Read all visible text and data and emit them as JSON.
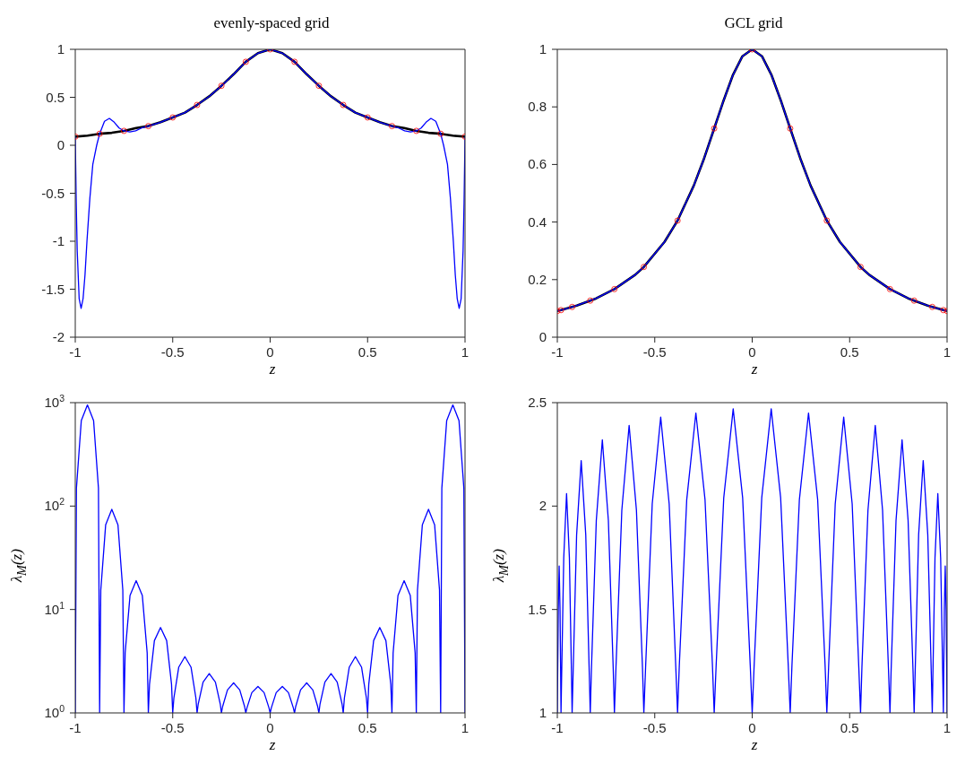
{
  "chart_data": [
    {
      "type": "line",
      "title": "evenly-spaced grid",
      "xlabel": "z",
      "marker": "none",
      "xlim": [
        -1,
        1
      ],
      "xticks": [
        -1,
        -0.5,
        0,
        0.5,
        1
      ],
      "ylim": [
        -2,
        1
      ],
      "yticks": [
        -2,
        -1.5,
        -1,
        -0.5,
        0,
        0.5,
        1
      ],
      "series": [
        {
          "color": "#000000",
          "x": [
            -1,
            -0.9375,
            -0.875,
            -0.8125,
            -0.75,
            -0.6875,
            -0.625,
            -0.5625,
            -0.5,
            -0.4375,
            -0.375,
            -0.3125,
            -0.25,
            -0.1875,
            -0.125,
            -0.0625,
            0,
            0.0625,
            0.125,
            0.1875,
            0.25,
            0.3125,
            0.375,
            0.4375,
            0.5,
            0.5625,
            0.625,
            0.6875,
            0.75,
            0.8125,
            0.875,
            0.9375,
            1
          ],
          "values": [
            0.09,
            0.1,
            0.12,
            0.13,
            0.15,
            0.18,
            0.2,
            0.24,
            0.29,
            0.34,
            0.42,
            0.51,
            0.62,
            0.74,
            0.87,
            0.96,
            1,
            0.96,
            0.87,
            0.74,
            0.62,
            0.51,
            0.42,
            0.34,
            0.29,
            0.24,
            0.2,
            0.18,
            0.15,
            0.13,
            0.12,
            0.1,
            0.09
          ]
        },
        {
          "color": "#0000ff",
          "x": [
            -1,
            -0.995,
            -0.99,
            -0.98,
            -0.97,
            -0.96,
            -0.95,
            -0.94,
            -0.925,
            -0.91,
            -0.89,
            -0.875,
            -0.85,
            -0.825,
            -0.8,
            -0.775,
            -0.75,
            -0.72,
            -0.69,
            -0.66,
            -0.625,
            -0.5625,
            -0.5,
            -0.4375,
            -0.375,
            -0.3125,
            -0.25,
            -0.1875,
            -0.125,
            -0.0625,
            0,
            0.0625,
            0.125,
            0.1875,
            0.25,
            0.3125,
            0.375,
            0.4375,
            0.5,
            0.5625,
            0.625,
            0.66,
            0.69,
            0.72,
            0.75,
            0.775,
            0.8,
            0.825,
            0.85,
            0.875,
            0.89,
            0.91,
            0.925,
            0.94,
            0.95,
            0.96,
            0.97,
            0.98,
            0.99,
            0.995,
            1
          ],
          "values": [
            0.09,
            -0.6,
            -1.1,
            -1.6,
            -1.7,
            -1.6,
            -1.35,
            -1.0,
            -0.55,
            -0.2,
            0.0,
            0.12,
            0.25,
            0.28,
            0.24,
            0.18,
            0.15,
            0.14,
            0.15,
            0.18,
            0.2,
            0.24,
            0.29,
            0.34,
            0.42,
            0.51,
            0.62,
            0.74,
            0.87,
            0.96,
            1,
            0.96,
            0.87,
            0.74,
            0.62,
            0.51,
            0.42,
            0.34,
            0.29,
            0.24,
            0.2,
            0.18,
            0.15,
            0.14,
            0.15,
            0.18,
            0.24,
            0.28,
            0.25,
            0.12,
            0.0,
            -0.2,
            -0.55,
            -1.0,
            -1.35,
            -1.6,
            -1.7,
            -1.6,
            -1.1,
            -0.6,
            0.09
          ]
        },
        {
          "type": "scatter",
          "marker": "circle",
          "color": "#ff0000",
          "x": [
            -1,
            -0.875,
            -0.75,
            -0.625,
            -0.5,
            -0.375,
            -0.25,
            -0.125,
            0,
            0.125,
            0.25,
            0.375,
            0.5,
            0.625,
            0.75,
            0.875,
            1
          ],
          "values": [
            0.09,
            0.12,
            0.15,
            0.2,
            0.29,
            0.42,
            0.62,
            0.87,
            1,
            0.87,
            0.62,
            0.42,
            0.29,
            0.2,
            0.15,
            0.12,
            0.09
          ]
        }
      ]
    },
    {
      "type": "line",
      "title": "GCL grid",
      "xlabel": "z",
      "marker": "none",
      "xlim": [
        -1,
        1
      ],
      "xticks": [
        -1,
        -0.5,
        0,
        0.5,
        1
      ],
      "ylim": [
        0,
        1
      ],
      "yticks": [
        0,
        0.2,
        0.4,
        0.6,
        0.8,
        1
      ],
      "series": [
        {
          "color": "#000000",
          "x": [
            -1,
            -0.981,
            -0.924,
            -0.9,
            -0.831,
            -0.8,
            -0.707,
            -0.6,
            -0.556,
            -0.45,
            -0.383,
            -0.3,
            -0.25,
            -0.195,
            -0.15,
            -0.1,
            -0.05,
            0,
            0.05,
            0.1,
            0.15,
            0.195,
            0.25,
            0.3,
            0.383,
            0.45,
            0.556,
            0.6,
            0.707,
            0.8,
            0.831,
            0.9,
            0.924,
            0.981,
            1
          ],
          "values": [
            0.091,
            0.094,
            0.105,
            0.11,
            0.127,
            0.135,
            0.167,
            0.217,
            0.244,
            0.331,
            0.405,
            0.526,
            0.615,
            0.725,
            0.816,
            0.909,
            0.976,
            1,
            0.976,
            0.909,
            0.816,
            0.725,
            0.615,
            0.526,
            0.405,
            0.331,
            0.244,
            0.217,
            0.167,
            0.135,
            0.127,
            0.11,
            0.105,
            0.094,
            0.091
          ]
        },
        {
          "color": "#0000ff",
          "x": [
            -1,
            -0.981,
            -0.924,
            -0.9,
            -0.831,
            -0.8,
            -0.707,
            -0.6,
            -0.556,
            -0.45,
            -0.383,
            -0.3,
            -0.25,
            -0.195,
            -0.15,
            -0.1,
            -0.05,
            0,
            0.05,
            0.1,
            0.15,
            0.195,
            0.25,
            0.3,
            0.383,
            0.45,
            0.556,
            0.6,
            0.707,
            0.8,
            0.831,
            0.9,
            0.924,
            0.981,
            1
          ],
          "values": [
            0.091,
            0.094,
            0.105,
            0.11,
            0.127,
            0.135,
            0.167,
            0.217,
            0.244,
            0.331,
            0.405,
            0.526,
            0.615,
            0.725,
            0.816,
            0.909,
            0.976,
            1,
            0.976,
            0.909,
            0.816,
            0.725,
            0.615,
            0.526,
            0.405,
            0.331,
            0.244,
            0.217,
            0.167,
            0.135,
            0.127,
            0.11,
            0.105,
            0.094,
            0.091
          ]
        },
        {
          "type": "scatter",
          "marker": "circle",
          "color": "#ff0000",
          "x": [
            -1,
            -0.981,
            -0.924,
            -0.831,
            -0.707,
            -0.556,
            -0.383,
            -0.195,
            0,
            0.195,
            0.383,
            0.556,
            0.707,
            0.831,
            0.924,
            0.981,
            1
          ],
          "values": [
            0.091,
            0.094,
            0.105,
            0.127,
            0.167,
            0.244,
            0.405,
            0.725,
            1,
            0.725,
            0.405,
            0.244,
            0.167,
            0.127,
            0.105,
            0.094,
            0.091
          ]
        }
      ]
    },
    {
      "type": "line",
      "xlabel": "z",
      "ylabel": "λ$_{M}$(z)",
      "marker": "none",
      "log": true,
      "xlim": [
        -1,
        1
      ],
      "xticks": [
        -1,
        -0.5,
        0,
        0.5,
        1
      ],
      "ylim": [
        1,
        1000
      ],
      "yticks": [
        {
          "value": 1,
          "label": "10$^{0}$"
        },
        {
          "value": 10,
          "label": "10$^{1}$"
        },
        {
          "value": 100,
          "label": "10$^{2}$"
        },
        {
          "value": 1000,
          "label": "10$^{3}$"
        }
      ],
      "series": [
        {
          "color": "#0000ff",
          "x": [
            -1,
            -0.994,
            -0.969,
            -0.9375,
            -0.906,
            -0.881,
            -0.875,
            -0.869,
            -0.844,
            -0.8125,
            -0.781,
            -0.756,
            -0.75,
            -0.744,
            -0.719,
            -0.6875,
            -0.656,
            -0.631,
            -0.625,
            -0.619,
            -0.594,
            -0.5625,
            -0.531,
            -0.506,
            -0.5,
            -0.494,
            -0.469,
            -0.4375,
            -0.406,
            -0.381,
            -0.375,
            -0.369,
            -0.344,
            -0.3125,
            -0.281,
            -0.256,
            -0.25,
            -0.244,
            -0.219,
            -0.1875,
            -0.156,
            -0.131,
            -0.125,
            -0.119,
            -0.094,
            -0.0625,
            -0.031,
            -0.006,
            0,
            0.006,
            0.031,
            0.0625,
            0.094,
            0.119,
            0.125,
            0.131,
            0.156,
            0.1875,
            0.219,
            0.244,
            0.25,
            0.256,
            0.281,
            0.3125,
            0.344,
            0.369,
            0.375,
            0.381,
            0.406,
            0.4375,
            0.469,
            0.494,
            0.5,
            0.506,
            0.531,
            0.5625,
            0.594,
            0.619,
            0.625,
            0.631,
            0.656,
            0.6875,
            0.719,
            0.744,
            0.75,
            0.756,
            0.781,
            0.8125,
            0.844,
            0.869,
            0.875,
            0.881,
            0.906,
            0.9375,
            0.969,
            0.994,
            1
          ],
          "values": [
            1,
            149,
            672,
            950,
            672,
            149,
            1,
            15.4,
            66,
            93,
            66,
            15.4,
            1,
            3.8,
            13.7,
            19,
            13.7,
            3.8,
            1,
            1.89,
            5.0,
            6.7,
            5.0,
            1.89,
            1,
            1.39,
            2.77,
            3.5,
            2.77,
            1.39,
            1,
            1.22,
            1.99,
            2.4,
            1.99,
            1.22,
            1,
            1.15,
            1.67,
            1.95,
            1.67,
            1.15,
            1,
            1.12,
            1.57,
            1.8,
            1.57,
            1.12,
            1,
            1.12,
            1.57,
            1.8,
            1.57,
            1.12,
            1,
            1.15,
            1.67,
            1.95,
            1.67,
            1.15,
            1,
            1.22,
            1.99,
            2.4,
            1.99,
            1.22,
            1,
            1.39,
            2.77,
            3.5,
            2.77,
            1.39,
            1,
            1.89,
            5.0,
            6.7,
            5.0,
            1.89,
            1,
            3.8,
            13.7,
            19,
            13.7,
            3.8,
            1,
            15.4,
            66,
            93,
            66,
            15.4,
            1,
            149,
            672,
            950,
            672,
            149,
            1
          ]
        }
      ]
    },
    {
      "type": "line",
      "xlabel": "z",
      "ylabel": "λ$_{M}$(z)",
      "marker": "none",
      "xlim": [
        -1,
        1
      ],
      "xticks": [
        -1,
        -0.5,
        0,
        0.5,
        1
      ],
      "ylim": [
        1,
        2.5
      ],
      "yticks": [
        1,
        1.5,
        2,
        2.5
      ],
      "series": [
        {
          "color": "#0000ff",
          "x": [
            -1,
            -0.999,
            -0.995,
            -0.9905,
            -0.986,
            -0.982,
            -0.981,
            -0.978,
            -0.967,
            -0.9525,
            -0.938,
            -0.927,
            -0.924,
            -0.919,
            -0.901,
            -0.8775,
            -0.854,
            -0.836,
            -0.831,
            -0.825,
            -0.8,
            -0.769,
            -0.738,
            -0.713,
            -0.707,
            -0.699,
            -0.669,
            -0.6315,
            -0.594,
            -0.563,
            -0.556,
            -0.547,
            -0.513,
            -0.4695,
            -0.426,
            -0.392,
            -0.383,
            -0.374,
            -0.336,
            -0.289,
            -0.242,
            -0.204,
            -0.195,
            -0.185,
            -0.146,
            -0.0975,
            -0.049,
            -0.01,
            0,
            0.01,
            0.049,
            0.0975,
            0.146,
            0.185,
            0.195,
            0.204,
            0.242,
            0.289,
            0.336,
            0.374,
            0.383,
            0.392,
            0.426,
            0.4695,
            0.513,
            0.547,
            0.556,
            0.563,
            0.594,
            0.6315,
            0.669,
            0.699,
            0.707,
            0.713,
            0.738,
            0.769,
            0.8,
            0.825,
            0.831,
            0.836,
            0.854,
            0.8775,
            0.901,
            0.919,
            0.924,
            0.927,
            0.938,
            0.9525,
            0.967,
            0.978,
            0.981,
            0.982,
            0.986,
            0.9905,
            0.995,
            0.999,
            1
          ],
          "values": [
            1,
            1.11,
            1.5,
            1.71,
            1.5,
            1.11,
            1,
            1.17,
            1.75,
            2.06,
            1.75,
            1.17,
            1,
            1.19,
            1.86,
            2.22,
            1.86,
            1.19,
            1,
            1.21,
            1.93,
            2.32,
            1.93,
            1.21,
            1,
            1.22,
            1.98,
            2.39,
            1.98,
            1.22,
            1,
            1.22,
            2.01,
            2.43,
            2.01,
            1.22,
            1,
            1.23,
            2.03,
            2.45,
            2.03,
            1.23,
            1,
            1.23,
            2.04,
            2.47,
            2.04,
            1.23,
            1,
            1.23,
            2.04,
            2.47,
            2.04,
            1.23,
            1,
            1.23,
            2.03,
            2.45,
            2.03,
            1.23,
            1,
            1.22,
            2.01,
            2.43,
            2.01,
            1.22,
            1,
            1.22,
            1.98,
            2.39,
            1.98,
            1.22,
            1,
            1.21,
            1.93,
            2.32,
            1.93,
            1.21,
            1,
            1.19,
            1.86,
            2.22,
            1.86,
            1.19,
            1,
            1.17,
            1.75,
            2.06,
            1.75,
            1.17,
            1,
            1.11,
            1.5,
            1.71,
            1.5,
            1.11,
            1
          ]
        }
      ]
    }
  ]
}
